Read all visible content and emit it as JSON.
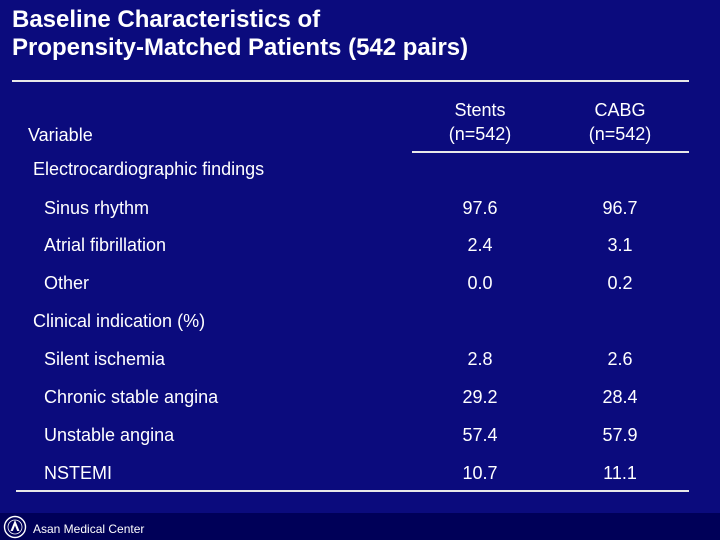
{
  "title": {
    "line1": "Baseline Characteristics of",
    "line2": "Propensity-Matched Patients (542 pairs)"
  },
  "headers": {
    "variable": "Variable",
    "stents_line1": "Stents",
    "stents_line2": "(n=542)",
    "cabg_line1": "CABG",
    "cabg_line2": "(n=542)"
  },
  "sections": [
    {
      "title": "Electrocardiographic findings",
      "rows": [
        {
          "label": "Sinus rhythm",
          "stents": "97.6",
          "cabg": "96.7"
        },
        {
          "label": "Atrial fibrillation",
          "stents": "2.4",
          "cabg": "3.1"
        },
        {
          "label": "Other",
          "stents": "0.0",
          "cabg": "0.2"
        }
      ]
    },
    {
      "title": "Clinical indication (%)",
      "rows": [
        {
          "label": "Silent ischemia",
          "stents": "2.8",
          "cabg": "2.6"
        },
        {
          "label": "Chronic stable angina",
          "stents": "29.2",
          "cabg": "28.4"
        },
        {
          "label": "Unstable angina",
          "stents": "57.4",
          "cabg": "57.9"
        },
        {
          "label": "NSTEMI",
          "stents": "10.7",
          "cabg": "11.1"
        }
      ]
    }
  ],
  "footer": {
    "org": "Asan Medical Center",
    "logo_icon": "asan-medical-center-logo-icon"
  },
  "colors": {
    "background": "#0b0b7d",
    "footer_bar": "#000058",
    "text": "#ffffff",
    "rule": "#e8e8e8"
  }
}
